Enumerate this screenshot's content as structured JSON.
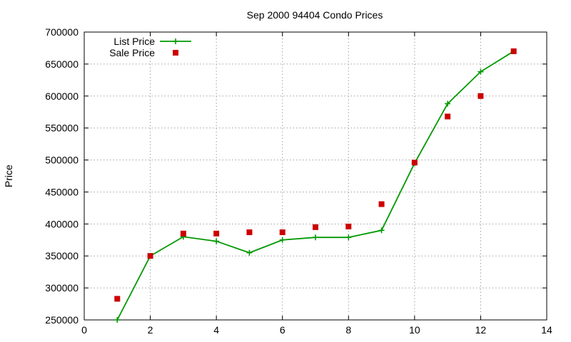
{
  "chart_data": {
    "type": "line",
    "title": "Sep 2000 94404 Condo Prices",
    "xlabel": "",
    "ylabel": "Price",
    "xlim": [
      0,
      14
    ],
    "ylim": [
      250000,
      700000
    ],
    "grid": true,
    "legend_position": "top-left",
    "x_ticks": [
      "0",
      "2",
      "4",
      "6",
      "8",
      "10",
      "12",
      "14"
    ],
    "y_ticks": [
      "250000",
      "300000",
      "350000",
      "400000",
      "450000",
      "500000",
      "550000",
      "600000",
      "650000",
      "700000"
    ],
    "series": [
      {
        "name": "List Price",
        "style": "line-plus",
        "color": "#009900",
        "x": [
          1,
          2,
          3,
          4,
          5,
          6,
          7,
          8,
          9,
          10,
          11,
          12,
          13
        ],
        "y": [
          250000,
          350000,
          380000,
          373000,
          355000,
          375000,
          379000,
          379000,
          390000,
          495000,
          588000,
          638000,
          670000
        ]
      },
      {
        "name": "Sale Price",
        "style": "square-points",
        "color": "#cc0000",
        "x": [
          1,
          2,
          3,
          4,
          5,
          6,
          7,
          8,
          9,
          10,
          11,
          12,
          13
        ],
        "y": [
          283000,
          350000,
          385000,
          385000,
          387000,
          387000,
          395000,
          396000,
          431000,
          496000,
          568000,
          600000,
          670000
        ]
      }
    ]
  }
}
